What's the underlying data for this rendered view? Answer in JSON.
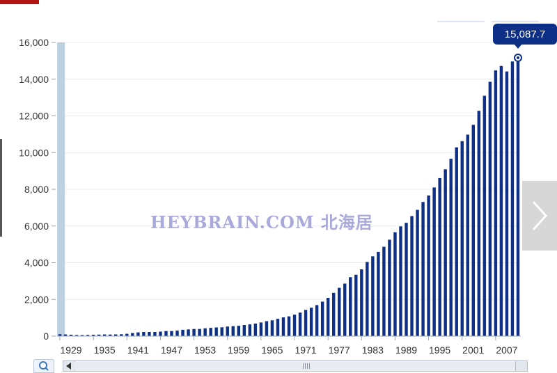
{
  "chart_data": {
    "type": "bar",
    "categories": [
      "1929",
      "1930",
      "1931",
      "1932",
      "1933",
      "1934",
      "1935",
      "1936",
      "1937",
      "1938",
      "1939",
      "1940",
      "1941",
      "1942",
      "1943",
      "1944",
      "1945",
      "1946",
      "1947",
      "1948",
      "1949",
      "1950",
      "1951",
      "1952",
      "1953",
      "1954",
      "1955",
      "1956",
      "1957",
      "1958",
      "1959",
      "1960",
      "1961",
      "1962",
      "1963",
      "1964",
      "1965",
      "1966",
      "1967",
      "1968",
      "1969",
      "1970",
      "1971",
      "1972",
      "1973",
      "1974",
      "1975",
      "1976",
      "1977",
      "1978",
      "1979",
      "1980",
      "1981",
      "1982",
      "1983",
      "1984",
      "1985",
      "1986",
      "1987",
      "1988",
      "1989",
      "1990",
      "1991",
      "1992",
      "1993",
      "1994",
      "1995",
      "1996",
      "1997",
      "1998",
      "1999",
      "2000",
      "2001",
      "2002",
      "2003",
      "2004",
      "2005",
      "2006",
      "2007",
      "2008",
      "2009",
      "2010",
      "2011"
    ],
    "values": [
      104,
      92,
      77,
      60,
      57,
      66,
      74,
      84,
      92,
      87,
      93,
      103,
      129,
      166,
      203,
      225,
      228,
      227,
      247,
      276,
      275,
      303,
      347,
      367,
      389,
      391,
      425,
      449,
      474,
      481,
      522,
      543,
      563,
      605,
      639,
      685,
      743,
      815,
      862,
      943,
      1020,
      1076,
      1168,
      1282,
      1429,
      1549,
      1689,
      1878,
      2086,
      2357,
      2632,
      2863,
      3211,
      3345,
      3638,
      4041,
      4347,
      4590,
      4870,
      5253,
      5658,
      5980,
      6174,
      6539,
      6879,
      7309,
      7664,
      8100,
      8609,
      9089,
      9661,
      10285,
      10622,
      10978,
      11511,
      12275,
      13094,
      13856,
      14478,
      14719,
      14419,
      14964,
      15087.7
    ],
    "x_tick_labels": [
      "1929",
      "1935",
      "1941",
      "1947",
      "1953",
      "1959",
      "1965",
      "1971",
      "1977",
      "1983",
      "1989",
      "1995",
      "2001",
      "2007"
    ],
    "y_tick_labels": [
      "0",
      "2,000",
      "4,000",
      "6,000",
      "8,000",
      "10,000",
      "12,000",
      "14,000",
      "16,000"
    ],
    "ylim": [
      0,
      16000
    ],
    "grid": true,
    "title": "",
    "xlabel": "",
    "ylabel": "",
    "colors": {
      "bar": "#0d2f86",
      "selected_bar": "#bfd1e1",
      "grid": "#e9edf2",
      "axis": "#9aa4b2"
    }
  },
  "tooltip": {
    "value": "15,087.7"
  },
  "watermark": {
    "text": "HEYBRAIN.COM 北海居"
  },
  "icons": {
    "next": "chevron-right-icon",
    "zoom": "magnifier-icon",
    "scroll_left": "arrow-left-icon"
  }
}
